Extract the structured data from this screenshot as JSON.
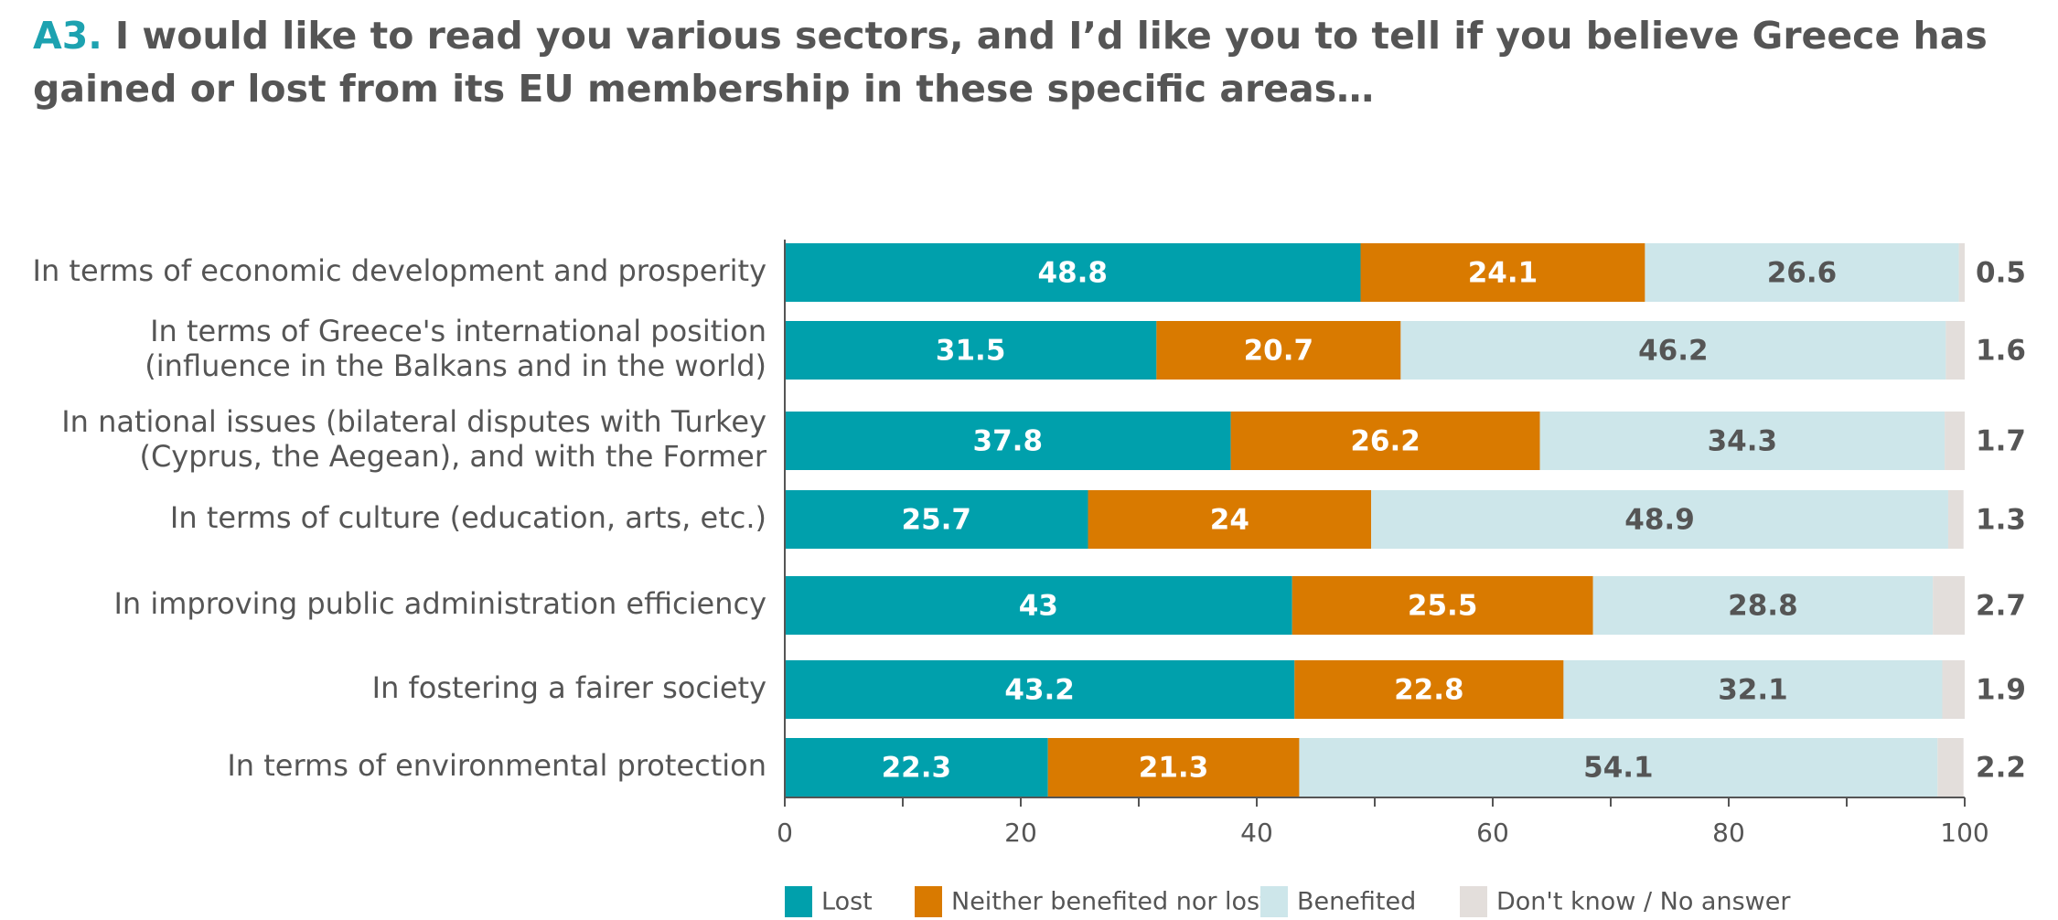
{
  "title": {
    "question_number": "A3.",
    "text": "I would like to read you various sectors, and I’d like you to tell if you believe Greece has gained or lost from its EU membership in these specific areas…"
  },
  "colors": {
    "lost": "#00a0ac",
    "neither": "#d97a00",
    "benefited": "#cde6ea",
    "dont_know": "#e3dedb",
    "category_text": "#555555",
    "axis_text": "#555555",
    "value_text_light": "#ffffff",
    "value_text_dark": "#555555"
  },
  "chart_data": {
    "type": "bar",
    "orientation": "horizontal",
    "stacked": true,
    "categories": [
      [
        "In terms of economic development and prosperity"
      ],
      [
        "In terms of Greece's international position",
        "(influence in the Balkans and in the world)"
      ],
      [
        "In national issues (bilateral disputes with Turkey",
        "(Cyprus, the Aegean), and with the Former"
      ],
      [
        "In terms of culture (education, arts, etc.)"
      ],
      [
        "In improving public administration efficiency"
      ],
      [
        "In fostering a fairer society"
      ],
      [
        "In terms of environmental protection"
      ]
    ],
    "series": [
      {
        "name": "Lost",
        "values": [
          48.8,
          31.5,
          37.8,
          25.7,
          43,
          43.2,
          22.3
        ]
      },
      {
        "name": "Neither benefited nor lost",
        "values": [
          24.1,
          20.7,
          26.2,
          24,
          25.5,
          22.8,
          21.3
        ]
      },
      {
        "name": "Benefited",
        "values": [
          26.6,
          46.2,
          34.3,
          48.9,
          28.8,
          32.1,
          54.1
        ]
      },
      {
        "name": "Don't know / No answer",
        "values": [
          0.5,
          1.6,
          1.7,
          1.3,
          2.7,
          1.9,
          2.2
        ]
      }
    ],
    "xlim": [
      0,
      100
    ],
    "xticks": [
      0,
      20,
      40,
      60,
      80,
      100
    ],
    "xlabel": "",
    "ylabel": "",
    "legend_position": "bottom",
    "grid": false
  }
}
